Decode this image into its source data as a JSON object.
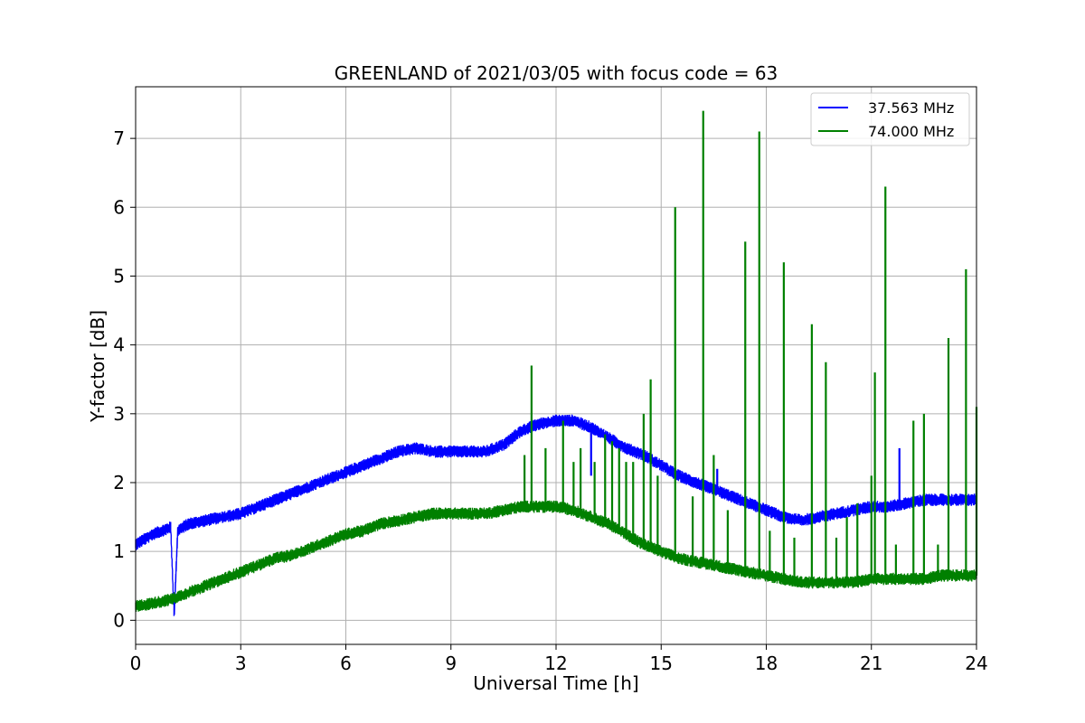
{
  "chart_data": {
    "type": "line",
    "title": "GREENLAND of 2021/03/05 with focus code = 63",
    "xlabel": "Universal Time [h]",
    "ylabel": "Y-factor [dB]",
    "xlim": [
      0,
      24
    ],
    "ylim": [
      -0.35,
      7.75
    ],
    "xticks": [
      0,
      3,
      6,
      9,
      12,
      15,
      18,
      21,
      24
    ],
    "yticks": [
      0,
      1,
      2,
      3,
      4,
      5,
      6,
      7
    ],
    "grid": true,
    "legend_position": "top-right",
    "series": [
      {
        "name": "37.563 MHz",
        "color": "#0000ff",
        "x": [
          0,
          0.5,
          1.0,
          1.1,
          1.2,
          1.5,
          2,
          2.5,
          3,
          3.5,
          4,
          4.5,
          5,
          5.5,
          6,
          6.5,
          7,
          7.5,
          8,
          8.5,
          9,
          9.5,
          10,
          10.5,
          11,
          11.5,
          12,
          12.5,
          13,
          13.5,
          14,
          14.5,
          15,
          15.5,
          16,
          16.5,
          17,
          17.5,
          18,
          18.5,
          19,
          19.5,
          20,
          20.5,
          21,
          21.5,
          22,
          22.5,
          23,
          23.5,
          24
        ],
        "y": [
          1.1,
          1.25,
          1.35,
          0.05,
          1.3,
          1.4,
          1.45,
          1.5,
          1.55,
          1.65,
          1.75,
          1.85,
          1.95,
          2.05,
          2.15,
          2.25,
          2.35,
          2.45,
          2.5,
          2.45,
          2.45,
          2.45,
          2.45,
          2.55,
          2.75,
          2.85,
          2.9,
          2.9,
          2.8,
          2.65,
          2.5,
          2.4,
          2.25,
          2.1,
          2.0,
          1.9,
          1.8,
          1.7,
          1.6,
          1.5,
          1.45,
          1.5,
          1.55,
          1.6,
          1.65,
          1.65,
          1.7,
          1.75,
          1.75,
          1.75,
          1.75
        ],
        "spikes": [
          [
            13.0,
            2.1
          ],
          [
            16.6,
            2.2
          ],
          [
            21.8,
            2.5
          ]
        ]
      },
      {
        "name": "74.000 MHz",
        "color": "#008000",
        "x": [
          0,
          0.5,
          1.0,
          1.5,
          2,
          2.5,
          3,
          3.5,
          4,
          4.5,
          5,
          5.5,
          6,
          6.5,
          7,
          7.5,
          8,
          8.5,
          9,
          9.5,
          10,
          10.5,
          11,
          11.5,
          12,
          12.5,
          13,
          13.5,
          14,
          14.5,
          15,
          15.5,
          16,
          16.5,
          17,
          17.5,
          18,
          18.5,
          19,
          19.5,
          20,
          20.5,
          21,
          21.5,
          22,
          22.5,
          23,
          23.5,
          24
        ],
        "y": [
          0.2,
          0.25,
          0.3,
          0.4,
          0.5,
          0.6,
          0.7,
          0.8,
          0.9,
          0.95,
          1.05,
          1.15,
          1.25,
          1.3,
          1.4,
          1.45,
          1.5,
          1.55,
          1.55,
          1.55,
          1.55,
          1.6,
          1.65,
          1.65,
          1.65,
          1.6,
          1.5,
          1.4,
          1.25,
          1.1,
          1.0,
          0.9,
          0.85,
          0.8,
          0.75,
          0.7,
          0.65,
          0.6,
          0.55,
          0.55,
          0.55,
          0.55,
          0.6,
          0.6,
          0.6,
          0.6,
          0.65,
          0.65,
          0.65
        ],
        "spikes": [
          [
            11.1,
            2.4
          ],
          [
            11.3,
            3.7
          ],
          [
            11.7,
            2.5
          ],
          [
            12.2,
            2.9
          ],
          [
            12.5,
            2.3
          ],
          [
            12.7,
            2.5
          ],
          [
            13.1,
            2.3
          ],
          [
            13.4,
            2.7
          ],
          [
            13.6,
            2.6
          ],
          [
            13.8,
            2.5
          ],
          [
            14.0,
            2.3
          ],
          [
            14.2,
            2.3
          ],
          [
            14.5,
            3.0
          ],
          [
            14.7,
            3.5
          ],
          [
            14.9,
            2.1
          ],
          [
            15.4,
            6.0
          ],
          [
            15.9,
            1.8
          ],
          [
            16.2,
            7.4
          ],
          [
            16.5,
            2.4
          ],
          [
            16.9,
            1.6
          ],
          [
            17.4,
            5.5
          ],
          [
            17.8,
            7.1
          ],
          [
            18.1,
            1.3
          ],
          [
            18.5,
            5.2
          ],
          [
            18.8,
            1.2
          ],
          [
            19.3,
            4.3
          ],
          [
            19.7,
            3.75
          ],
          [
            20.0,
            1.2
          ],
          [
            20.3,
            1.5
          ],
          [
            20.6,
            1.7
          ],
          [
            21.0,
            2.1
          ],
          [
            21.1,
            3.6
          ],
          [
            21.4,
            6.3
          ],
          [
            21.7,
            1.1
          ],
          [
            22.2,
            2.9
          ],
          [
            22.5,
            3.0
          ],
          [
            22.9,
            1.1
          ],
          [
            23.2,
            4.1
          ],
          [
            23.7,
            5.1
          ],
          [
            24.0,
            3.1
          ]
        ]
      }
    ]
  }
}
